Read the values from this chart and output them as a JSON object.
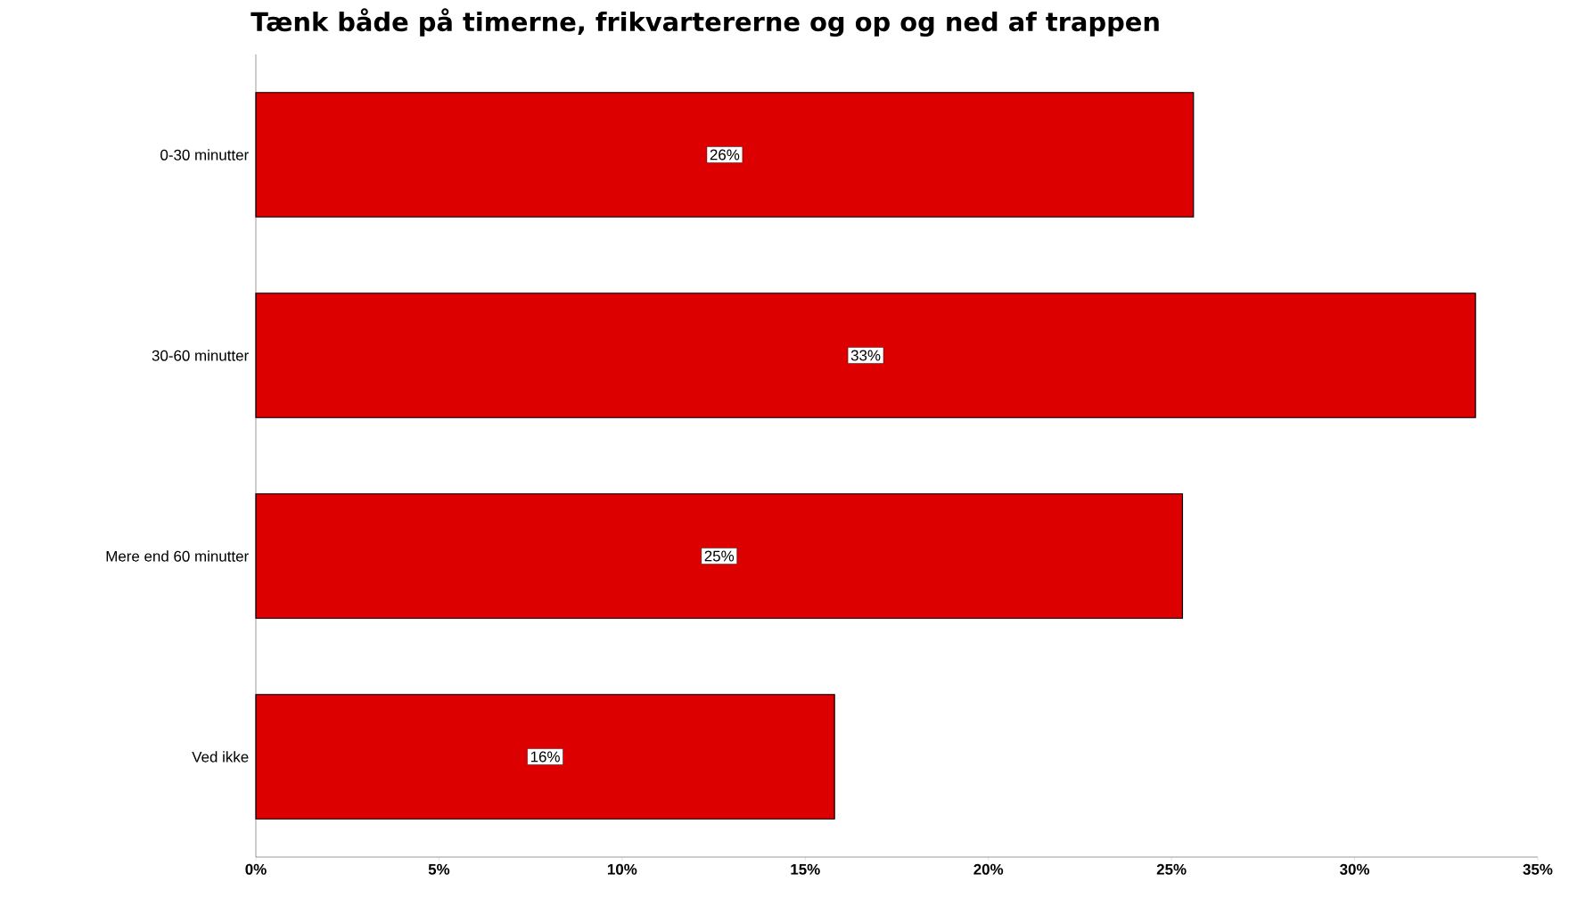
{
  "chart_data": {
    "type": "bar",
    "orientation": "horizontal",
    "title": "Tænk både på timerne, frikvartererne og op og ned af trappen",
    "categories": [
      "0-30 minutter",
      "30-60 minutter",
      "Mere end 60 minutter",
      "Ved ikke"
    ],
    "values": [
      25.6,
      33.3,
      25.3,
      15.8
    ],
    "value_labels": [
      "26%",
      "33%",
      "25%",
      "16%"
    ],
    "color": "#dd0000",
    "xlim": [
      0,
      35
    ],
    "xticks": [
      {
        "value": 0,
        "label": "0%"
      },
      {
        "value": 5,
        "label": "5%"
      },
      {
        "value": 10,
        "label": "10%"
      },
      {
        "value": 15,
        "label": "15%"
      },
      {
        "value": 20,
        "label": "20%"
      },
      {
        "value": 25,
        "label": "25%"
      },
      {
        "value": 30,
        "label": "30%"
      },
      {
        "value": 35,
        "label": "35%"
      }
    ]
  }
}
